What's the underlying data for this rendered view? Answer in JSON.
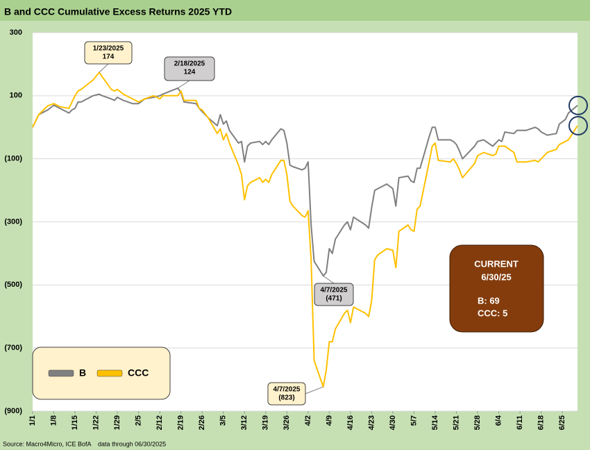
{
  "chart_data": {
    "type": "line",
    "title": "B and CCC Cumulative Excess Returns 2025 YTD",
    "source": "Source: Macro4Micro, ICE BofA    data through 06/30/2025",
    "x": [
      "1/1",
      "1/3",
      "1/6",
      "1/8",
      "1/10",
      "1/13",
      "1/14",
      "1/15",
      "1/16",
      "1/17",
      "1/21",
      "1/23",
      "1/24",
      "1/27",
      "1/28",
      "1/29",
      "1/31",
      "2/3",
      "2/5",
      "2/7",
      "2/10",
      "2/12",
      "2/13",
      "2/18",
      "2/19",
      "2/20",
      "2/24",
      "2/25",
      "2/26",
      "2/28",
      "3/3",
      "3/4",
      "3/5",
      "3/6",
      "3/7",
      "3/10",
      "3/11",
      "3/12",
      "3/13",
      "3/14",
      "3/17",
      "3/18",
      "3/19",
      "3/20",
      "3/21",
      "3/24",
      "3/25",
      "3/26",
      "3/27",
      "3/28",
      "3/31",
      "4/1",
      "4/2",
      "4/3",
      "4/4",
      "4/7",
      "4/8",
      "4/9",
      "4/10",
      "4/11",
      "4/14",
      "4/15",
      "4/16",
      "4/17",
      "4/21",
      "4/22",
      "4/23",
      "4/24",
      "4/25",
      "4/28",
      "4/30",
      "5/1",
      "5/2",
      "5/5",
      "5/6",
      "5/7",
      "5/8",
      "5/9",
      "5/12",
      "5/13",
      "5/14",
      "5/15",
      "5/19",
      "5/20",
      "5/21",
      "5/22",
      "5/23",
      "5/27",
      "5/28",
      "5/30",
      "6/2",
      "6/3",
      "6/4",
      "6/5",
      "6/6",
      "6/9",
      "6/10",
      "6/13",
      "6/16",
      "6/17",
      "6/18",
      "6/20",
      "6/23",
      "6/24",
      "6/26",
      "6/27",
      "6/30"
    ],
    "series": [
      {
        "name": "B",
        "color": "#7f7f7f",
        "values": [
          0,
          40,
          55,
          70,
          60,
          45,
          55,
          60,
          80,
          80,
          100,
          105,
          100,
          90,
          85,
          95,
          85,
          75,
          75,
          90,
          95,
          100,
          105,
          124,
          110,
          80,
          75,
          60,
          50,
          30,
          5,
          40,
          10,
          20,
          -10,
          -50,
          -45,
          -110,
          -60,
          -50,
          -45,
          -55,
          -45,
          -55,
          -40,
          -5,
          -10,
          -50,
          -120,
          -125,
          -135,
          -130,
          -110,
          -310,
          -425,
          -471,
          -460,
          -385,
          -400,
          -355,
          -310,
          -300,
          -325,
          -285,
          -310,
          -320,
          -255,
          -200,
          -195,
          -180,
          -195,
          -250,
          -160,
          -155,
          -170,
          -175,
          -130,
          -130,
          -30,
          0,
          0,
          -40,
          -40,
          -45,
          -55,
          -75,
          -100,
          -60,
          -45,
          -40,
          -60,
          -50,
          -40,
          -45,
          -15,
          -20,
          -10,
          -10,
          0,
          -5,
          -15,
          -25,
          -20,
          10,
          25,
          45,
          69
        ]
      },
      {
        "name": "CCC",
        "color": "#ffc000",
        "values": [
          0,
          40,
          68,
          75,
          65,
          60,
          80,
          100,
          115,
          120,
          150,
          174,
          160,
          120,
          115,
          120,
          105,
          90,
          80,
          90,
          100,
          90,
          100,
          100,
          115,
          85,
          85,
          60,
          55,
          30,
          -20,
          -5,
          -40,
          -20,
          -50,
          -120,
          -150,
          -230,
          -185,
          -175,
          -160,
          -175,
          -165,
          -175,
          -150,
          -105,
          -105,
          -150,
          -235,
          -250,
          -280,
          -285,
          -265,
          -420,
          -740,
          -823,
          -770,
          -680,
          -680,
          -640,
          -590,
          -580,
          -620,
          -570,
          -590,
          -600,
          -550,
          -420,
          -405,
          -385,
          -390,
          -445,
          -330,
          -310,
          -325,
          -330,
          -260,
          -250,
          -110,
          -60,
          -50,
          -105,
          -110,
          -100,
          -115,
          -135,
          -160,
          -115,
          -90,
          -80,
          -90,
          -85,
          -60,
          -60,
          -60,
          -80,
          -110,
          -110,
          -105,
          -110,
          -100,
          -80,
          -70,
          -55,
          -45,
          -40,
          5
        ]
      }
    ],
    "xlim": [
      "1/1",
      "6/30"
    ],
    "xticks": [
      "1/1",
      "1/8",
      "1/15",
      "1/22",
      "1/29",
      "2/5",
      "2/12",
      "2/19",
      "2/26",
      "3/5",
      "3/12",
      "3/19",
      "3/26",
      "4/2",
      "4/9",
      "4/16",
      "4/23",
      "4/30",
      "5/7",
      "5/14",
      "5/21",
      "5/28",
      "6/4",
      "6/11",
      "6/18",
      "6/25"
    ],
    "ylim": [
      -900,
      300
    ],
    "yticks": [
      300,
      100,
      {
        "value": -100,
        "label": "(100)"
      },
      {
        "value": -300,
        "label": "(300)"
      },
      {
        "value": -500,
        "label": "(500)"
      },
      {
        "value": -700,
        "label": "(700)"
      },
      {
        "value": -900,
        "label": "(900)"
      }
    ],
    "grid": true,
    "legend": "lower left",
    "annotations": [
      {
        "lines": [
          "1/23/2025",
          "174"
        ]
      },
      {
        "lines": [
          "2/18/2025",
          "124"
        ]
      },
      {
        "lines": [
          "4/7/2025",
          "(471)"
        ]
      },
      {
        "lines": [
          "4/7/2025",
          "(823)"
        ]
      }
    ],
    "current_box": {
      "lines": [
        "CURRENT",
        "6/30/25"
      ],
      "values": [
        "B: 69",
        "CCC: 5"
      ]
    }
  }
}
